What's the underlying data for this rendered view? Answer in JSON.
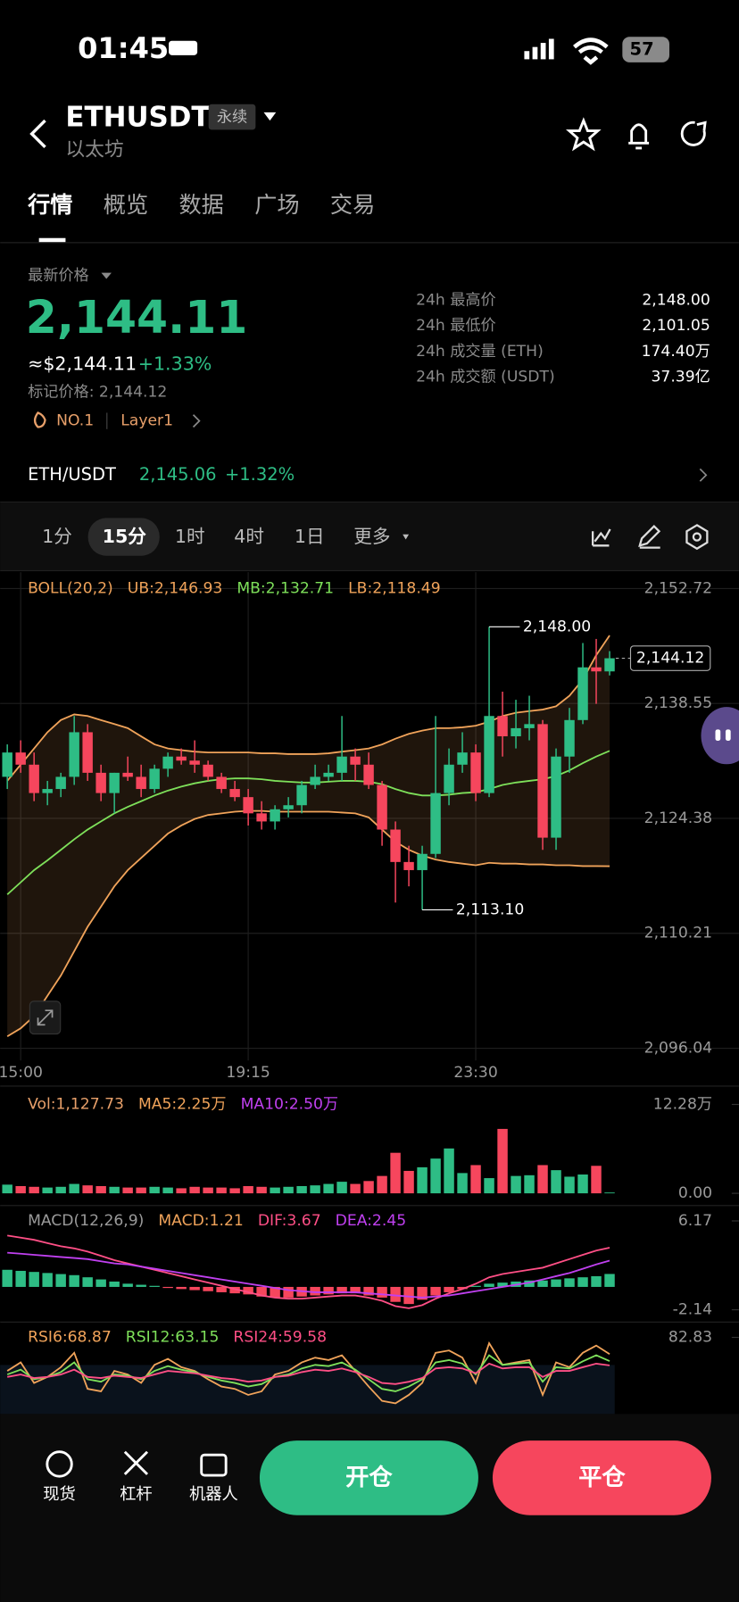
{
  "status_bar": {
    "time": "01:45",
    "battery": "57"
  },
  "header": {
    "symbol": "ETHUSDT",
    "badge": "永续",
    "subtitle": "以太坊"
  },
  "tabs": [
    "行情",
    "概览",
    "数据",
    "广场",
    "交易"
  ],
  "price_panel": {
    "label": "最新价格",
    "last": "2,144.11",
    "approx": "≈$2,144.11",
    "change": "+1.33%",
    "mark_price": "标记价格: 2,144.12",
    "tags": [
      "NO.1",
      "Layer1"
    ],
    "stats": [
      [
        "24h 最高价",
        "2,148.00"
      ],
      [
        "24h 最低价",
        "2,101.05"
      ],
      [
        "24h 成交量 (ETH)",
        "174.40万"
      ],
      [
        "24h 成交额 (USDT)",
        "37.39亿"
      ]
    ]
  },
  "pair_row": {
    "pair": "ETH/USDT",
    "price": "2,145.06",
    "change": "+1.32%"
  },
  "intervals": [
    "1分",
    "15分",
    "1时",
    "4时",
    "1日",
    "更多"
  ],
  "bottom_bar": {
    "items": [
      "现货",
      "杠杆",
      "机器人"
    ],
    "open_button": "开仓",
    "close_button": "平仓"
  },
  "chart_data": [
    {
      "type": "candlestick",
      "indicator": "BOLL(20,2)",
      "up_color": "#2ebd85",
      "down_color": "#f6465d",
      "grid": true,
      "categories": [
        null,
        "15:00",
        null,
        null,
        null,
        null,
        null,
        null,
        null,
        null,
        null,
        null,
        null,
        null,
        null,
        null,
        null,
        null,
        "19:15",
        null,
        null,
        null,
        null,
        null,
        null,
        null,
        null,
        null,
        null,
        null,
        null,
        null,
        null,
        null,
        null,
        "23:30",
        null,
        null,
        null,
        null,
        null,
        null,
        null,
        null,
        null,
        null
      ],
      "open": [
        2129.5,
        2132.5,
        2131,
        2127.5,
        2128,
        2129.5,
        2135,
        2130,
        2127.5,
        2130,
        2129.5,
        2128,
        2130.5,
        2132,
        2131.5,
        2131,
        2129.5,
        2128,
        2127,
        2125,
        2124,
        2125.5,
        2126,
        2128.5,
        2129.5,
        2130,
        2132,
        2131,
        2128.5,
        2123,
        2119,
        2118,
        2120,
        2127.5,
        2131,
        2132.5,
        2127.5,
        2137,
        2134.5,
        2135.5,
        2136,
        2122,
        2132,
        2136.5,
        2143,
        2142.5
      ],
      "high": [
        2133.5,
        2134,
        2132.5,
        2129,
        2130,
        2137,
        2136,
        2131,
        2130,
        2132,
        2131,
        2131,
        2132.5,
        2133,
        2134,
        2131.5,
        2130,
        2129,
        2128,
        2126.5,
        2126,
        2127,
        2129,
        2131,
        2131,
        2137,
        2133,
        2132.5,
        2129,
        2124,
        2121,
        2121,
        2137,
        2133,
        2135,
        2133.5,
        2148,
        2140,
        2139,
        2139.5,
        2136.5,
        2133,
        2138,
        2146,
        2146.5,
        2145
      ],
      "low": [
        2128,
        2130,
        2126.5,
        2126,
        2127,
        2128.5,
        2129,
        2126.5,
        2125,
        2129,
        2127,
        2127.5,
        2129.5,
        2131,
        2130,
        2129,
        2127.5,
        2126.5,
        2123.5,
        2123,
        2123,
        2124.5,
        2125,
        2128,
        2129,
        2129,
        2129,
        2128,
        2121,
        2114,
        2116,
        2113.1,
        2119.5,
        2126,
        2130,
        2126.5,
        2127,
        2132,
        2133,
        2134,
        2120.5,
        2120.5,
        2130,
        2136,
        2138.5,
        2142
      ],
      "close": [
        2132.5,
        2131,
        2127.5,
        2128,
        2129.5,
        2135,
        2130,
        2127.5,
        2130,
        2129.5,
        2128,
        2130.5,
        2132,
        2131.5,
        2131,
        2129.5,
        2128,
        2127,
        2125,
        2124,
        2125.5,
        2126,
        2128.5,
        2129.5,
        2130,
        2132,
        2131,
        2128.5,
        2123,
        2119,
        2118,
        2120,
        2127.5,
        2131,
        2132.5,
        2127.5,
        2137,
        2134.5,
        2135.5,
        2136,
        2122,
        2132,
        2136.5,
        2143,
        2142.5,
        2144.12
      ],
      "series": [
        {
          "name": "UB:2,146.93",
          "color": "#f0a35a",
          "values": [
            2129,
            2131,
            2133,
            2135,
            2136.5,
            2137.2,
            2137,
            2136.5,
            2136,
            2135.5,
            2134.5,
            2133.5,
            2133,
            2132.8,
            2132.6,
            2132.5,
            2132.5,
            2132.5,
            2132.5,
            2132.4,
            2132.4,
            2132.3,
            2132.3,
            2132.3,
            2132.4,
            2132.6,
            2132.8,
            2133,
            2133.5,
            2134.2,
            2134.8,
            2135.2,
            2135.5,
            2135.5,
            2135.6,
            2135.8,
            2136.3,
            2137,
            2137.4,
            2137.6,
            2137.8,
            2138.2,
            2139.5,
            2141.5,
            2144.5,
            2146.93
          ]
        },
        {
          "name": "MB:2,132.71",
          "color": "#7ee05a",
          "values": [
            2115,
            2116.5,
            2118,
            2119.2,
            2120.5,
            2121.8,
            2123,
            2124,
            2125,
            2125.8,
            2126.5,
            2127.2,
            2127.8,
            2128.3,
            2128.7,
            2129,
            2129.2,
            2129.3,
            2129.3,
            2129.2,
            2129,
            2128.9,
            2128.8,
            2128.8,
            2128.9,
            2129,
            2129,
            2128.9,
            2128.6,
            2128,
            2127.5,
            2127.2,
            2127.2,
            2127.3,
            2127.5,
            2127.6,
            2128,
            2128.5,
            2128.8,
            2129,
            2129.2,
            2129.6,
            2130.3,
            2131.2,
            2132,
            2132.71
          ]
        },
        {
          "name": "LB:2,118.49",
          "color": "#f0a35a",
          "values": [
            2097.5,
            2098.5,
            2100,
            2102.5,
            2105,
            2108,
            2111,
            2113.5,
            2116,
            2118,
            2119.5,
            2121,
            2122.5,
            2123.5,
            2124.3,
            2124.8,
            2125,
            2125.2,
            2125.3,
            2125.3,
            2125.2,
            2125.2,
            2125.2,
            2125.2,
            2125.2,
            2125.1,
            2125,
            2124.5,
            2123,
            2121.5,
            2120.5,
            2119.8,
            2119.3,
            2119,
            2118.8,
            2118.6,
            2118.9,
            2118.8,
            2118.8,
            2118.7,
            2118.7,
            2118.6,
            2118.6,
            2118.5,
            2118.5,
            2118.49
          ]
        }
      ],
      "ylim": [
        2096.04,
        2152.72
      ],
      "yticks": [
        {
          "value": 2152.72,
          "label": "2,152.72"
        },
        {
          "value": 2138.55,
          "label": "2,138.55"
        },
        {
          "value": 2124.38,
          "label": "2,124.38"
        },
        {
          "value": 2110.21,
          "label": "2,110.21"
        },
        {
          "value": 2096.04,
          "label": "2,096.04"
        }
      ],
      "annotations": [
        {
          "value": 2148,
          "label": "2,148.00"
        },
        {
          "value": 2113.1,
          "label": "2,113.10"
        }
      ],
      "current_price": {
        "value": 2144.12,
        "label": "2,144.12"
      }
    },
    {
      "type": "bar",
      "title": "Vol:1,127.73",
      "legend": [
        {
          "name": "MA5:2.25万",
          "color": "#f0a35a"
        },
        {
          "name": "MA10:2.50万",
          "color": "#c040f0"
        }
      ],
      "values": [
        1.2,
        1,
        0.9,
        0.8,
        0.9,
        1.3,
        1.1,
        1,
        0.9,
        0.8,
        0.8,
        0.9,
        0.8,
        0.7,
        0.9,
        0.8,
        0.8,
        0.7,
        1,
        0.9,
        0.8,
        0.9,
        1,
        1.1,
        1.3,
        1.6,
        1.3,
        1.7,
        2.4,
        5.6,
        3.1,
        3.6,
        4.8,
        6.2,
        2.8,
        3.9,
        2.1,
        8.9,
        2.4,
        2.5,
        3.9,
        3.2,
        2.3,
        2.6,
        3.8,
        0.11
      ],
      "ylim": [
        0,
        12.28
      ],
      "yticks": [
        {
          "value": 12.28,
          "label": "12.28万"
        },
        {
          "value": 0,
          "label": "0.00"
        }
      ]
    },
    {
      "type": "macd",
      "title": "MACD(12,26,9)",
      "up_color": "#2ebd85",
      "down_color": "#f6465d",
      "series": [
        {
          "name": "MACD:1.21",
          "color": "#f0a35a",
          "style": "bar",
          "values": [
            1.6,
            1.5,
            1.4,
            1.3,
            1.2,
            1.1,
            0.9,
            0.7,
            0.5,
            0.3,
            0.2,
            0.1,
            -0.1,
            -0.2,
            -0.3,
            -0.4,
            -0.5,
            -0.6,
            -0.7,
            -0.9,
            -1,
            -1,
            -0.9,
            -0.8,
            -0.7,
            -0.6,
            -0.6,
            -0.8,
            -1,
            -1.4,
            -1.6,
            -1.2,
            -0.8,
            -0.5,
            -0.2,
            0.1,
            0.3,
            0.4,
            0.5,
            0.6,
            0.6,
            0.7,
            0.8,
            0.9,
            1,
            1.21
          ]
        },
        {
          "name": "DIF:3.67",
          "color": "#ff4f86",
          "style": "line",
          "values": [
            4.8,
            4.6,
            4.4,
            4.1,
            3.8,
            3.6,
            3.3,
            2.9,
            2.5,
            2.2,
            1.9,
            1.6,
            1.3,
            1,
            0.7,
            0.4,
            0.1,
            -0.2,
            -0.5,
            -0.8,
            -1,
            -1.1,
            -1.1,
            -1,
            -0.9,
            -0.8,
            -0.8,
            -1,
            -1.3,
            -1.8,
            -2,
            -1.7,
            -1.1,
            -0.6,
            -0.2,
            0.3,
            0.9,
            1.2,
            1.4,
            1.6,
            1.8,
            2.2,
            2.6,
            3,
            3.4,
            3.67
          ]
        },
        {
          "name": "DEA:2.45",
          "color": "#c040f0",
          "style": "line",
          "values": [
            3.2,
            3.1,
            3,
            2.9,
            2.8,
            2.7,
            2.6,
            2.4,
            2.2,
            2.1,
            1.9,
            1.7,
            1.5,
            1.3,
            1.1,
            0.9,
            0.7,
            0.5,
            0.3,
            0.1,
            -0.1,
            -0.3,
            -0.4,
            -0.5,
            -0.5,
            -0.5,
            -0.5,
            -0.6,
            -0.7,
            -0.8,
            -0.9,
            -1,
            -0.9,
            -0.8,
            -0.6,
            -0.4,
            -0.2,
            0,
            0.2,
            0.4,
            0.7,
            1,
            1.3,
            1.7,
            2.1,
            2.45
          ]
        }
      ],
      "ylim": [
        -2.14,
        6.17
      ],
      "yticks": [
        6.17,
        -2.14
      ]
    },
    {
      "type": "line",
      "series": [
        {
          "name": "RSI6:68.87",
          "color": "#f0a35a",
          "values": [
            55,
            62,
            45,
            50,
            58,
            70,
            40,
            38,
            55,
            52,
            45,
            60,
            65,
            58,
            55,
            48,
            42,
            40,
            35,
            38,
            52,
            55,
            62,
            66,
            64,
            68,
            55,
            42,
            30,
            28,
            35,
            45,
            70,
            72,
            66,
            45,
            78,
            60,
            62,
            64,
            35,
            62,
            58,
            70,
            76,
            68.87
          ]
        },
        {
          "name": "RSI12:63.15",
          "color": "#7ee05a",
          "values": [
            52,
            56,
            48,
            50,
            54,
            62,
            48,
            46,
            52,
            51,
            48,
            55,
            59,
            56,
            54,
            50,
            47,
            45,
            42,
            44,
            50,
            52,
            57,
            60,
            59,
            62,
            56,
            48,
            40,
            38,
            42,
            48,
            62,
            64,
            61,
            52,
            68,
            60,
            61,
            62,
            46,
            58,
            57,
            63,
            68,
            63.15
          ]
        },
        {
          "name": "RSI24:59.58",
          "color": "#ff4f86",
          "values": [
            50,
            52,
            49,
            50,
            52,
            56,
            50,
            49,
            51,
            50,
            49,
            52,
            55,
            54,
            53,
            51,
            49,
            48,
            46,
            47,
            50,
            51,
            54,
            56,
            55,
            57,
            54,
            50,
            45,
            44,
            46,
            49,
            57,
            58,
            57,
            53,
            61,
            57,
            58,
            58,
            50,
            55,
            55,
            58,
            61,
            59.58
          ]
        }
      ],
      "ylim": [
        20,
        82.83
      ],
      "yticks": [
        82.83
      ]
    }
  ]
}
